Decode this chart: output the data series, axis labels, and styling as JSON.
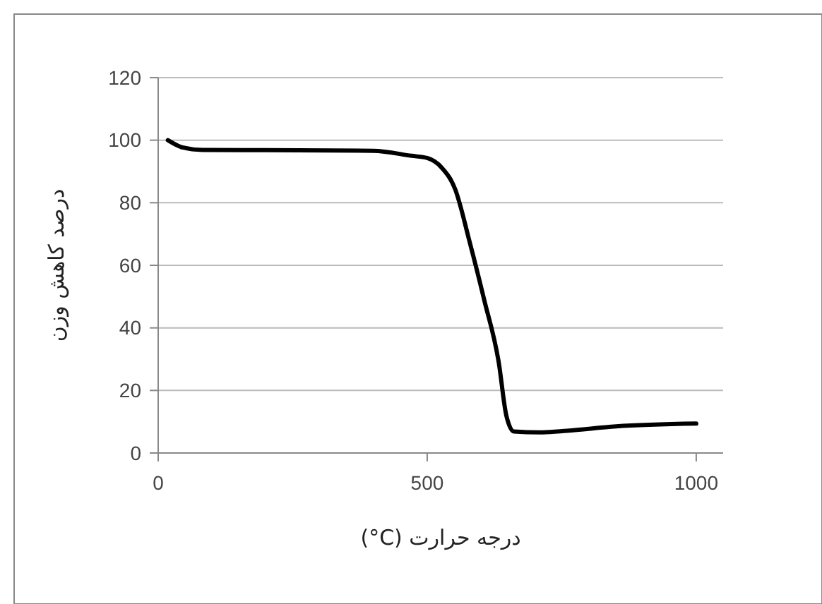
{
  "chart_data": {
    "type": "line",
    "xlabel": "درجه حرارت (°C)",
    "ylabel": "درصد کاهش وزن",
    "xlim": [
      0,
      1050
    ],
    "xticks": [
      0,
      500,
      1000
    ],
    "ylim": [
      0,
      120
    ],
    "yticks": [
      0,
      20,
      40,
      60,
      80,
      100,
      120
    ],
    "grid": "y",
    "line_style": "solid",
    "marker": "none",
    "series": [
      {
        "color": "#000000",
        "x": [
          18,
          45,
          82,
          200,
          400,
          471,
          500,
          527,
          552,
          579,
          606,
          633,
          647,
          661,
          715,
          760,
          851,
          1000
        ],
        "values": [
          100,
          97.7,
          96.9,
          96.8,
          96.6,
          95,
          94.3,
          91.2,
          84.3,
          67.4,
          48.9,
          28.9,
          12,
          6.9,
          6.6,
          7.1,
          8.5,
          9.4
        ]
      }
    ]
  }
}
